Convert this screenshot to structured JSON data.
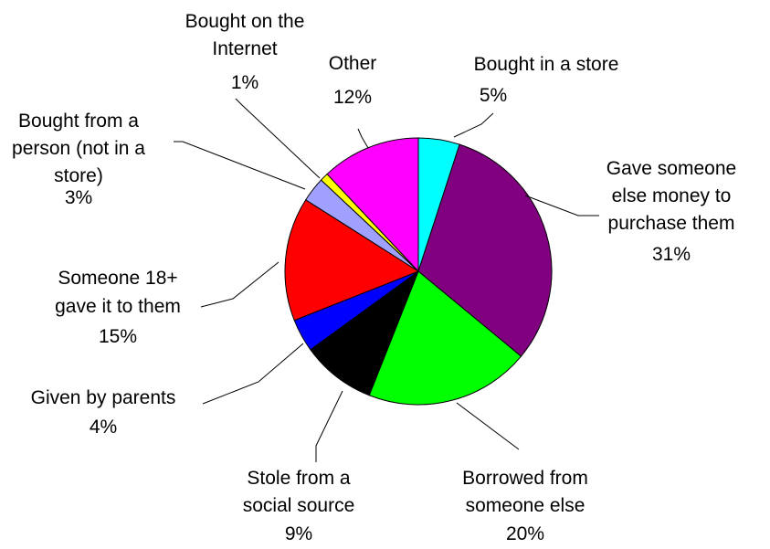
{
  "chart_data": {
    "type": "pie",
    "slices": [
      {
        "label": [
          "Bought in a store"
        ],
        "percent_text": "5%",
        "value": 5,
        "color": "#00ffff"
      },
      {
        "label": [
          "Gave someone",
          "else money to",
          "purchase them"
        ],
        "percent_text": "31%",
        "value": 31,
        "color": "#800080"
      },
      {
        "label": [
          "Borrowed from",
          "someone else"
        ],
        "percent_text": "20%",
        "value": 20,
        "color": "#00ff00"
      },
      {
        "label": [
          "Stole from a",
          "social source"
        ],
        "percent_text": "9%",
        "value": 9,
        "color": "#000000"
      },
      {
        "label": [
          "Given by parents"
        ],
        "percent_text": "4%",
        "value": 4,
        "color": "#0000ff"
      },
      {
        "label": [
          "Someone 18+",
          "gave it to them"
        ],
        "percent_text": "15%",
        "value": 15,
        "color": "#ff0000"
      },
      {
        "label": [
          "Bought from a",
          "person (not in a",
          "store)"
        ],
        "percent_text": "3%",
        "value": 3,
        "color": "#a0a0ff"
      },
      {
        "label": [
          "Bought on the",
          "Internet"
        ],
        "percent_text": "1%",
        "value": 1,
        "color": "#ffff00"
      },
      {
        "label": [
          "Other"
        ],
        "percent_text": "12%",
        "value": 12,
        "color": "#ff00ff"
      }
    ],
    "start_angle_deg": 0,
    "direction": "clockwise",
    "legend": "none"
  }
}
